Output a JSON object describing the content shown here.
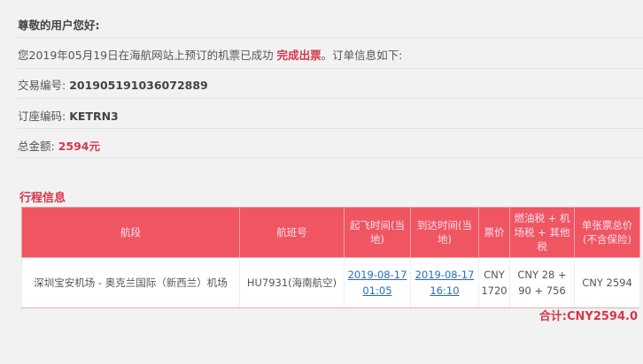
{
  "greeting": "尊敬的用户您好:",
  "intro": {
    "before": "您2019年05月19日在海航网站上预订的机票已成功 ",
    "highlight": "完成出票",
    "after": "。订单信息如下:"
  },
  "transaction": {
    "label": "交易编号: ",
    "value": "201905191036072889"
  },
  "booking": {
    "label": "订座编码: ",
    "value": "KETRN3"
  },
  "amount": {
    "label": "总金额: ",
    "value": "2594元"
  },
  "itinerary": {
    "title": "行程信息",
    "headers": [
      "航段",
      "航班号",
      "起飞时间(当地)",
      "到达时间(当地)",
      "票价",
      "燃油税 + 机场税 + 其他税",
      "单张票总价(不含保险)"
    ],
    "rows": [
      {
        "segment": "深圳宝安机场 - 奥克兰国际（新西兰）机场",
        "flight": "HU7931(海南航空)",
        "dep_date": "2019-08-17",
        "dep_time": "01:05",
        "arr_date": "2019-08-17",
        "arr_time": "16:10",
        "fare": "CNY 1720",
        "taxes": "CNY 28 + 90 + 756",
        "total": "CNY 2594"
      }
    ],
    "sum": "合计:CNY2594.0"
  },
  "colors": {
    "accent": "#ef5662",
    "highlight": "#d8364a",
    "link": "#2a6bb8"
  }
}
